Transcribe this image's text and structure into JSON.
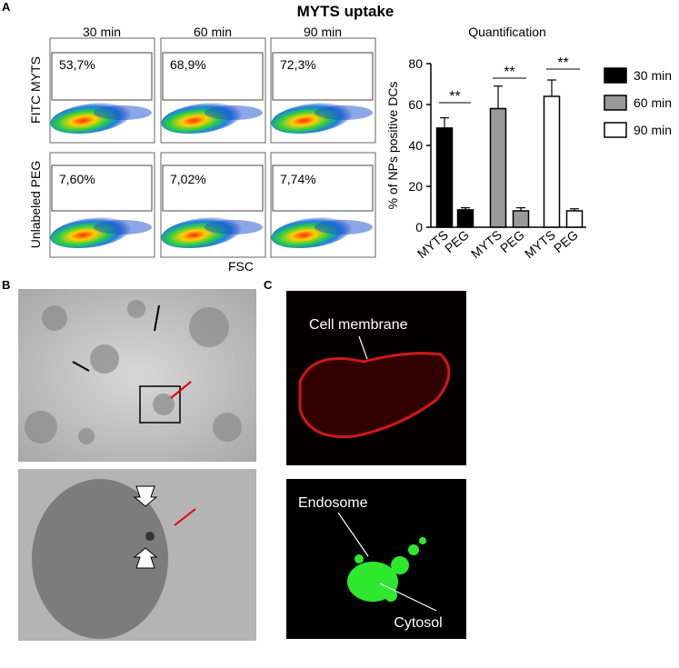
{
  "panels": [
    "A",
    "B",
    "C"
  ],
  "flow": {
    "title": "MYTS uptake",
    "columns": [
      "30 min",
      "60 min",
      "90 min"
    ],
    "rows": [
      "FITC MYTS",
      "Unlabeled PEG"
    ],
    "percentages": [
      [
        "53,7%",
        "68,9%",
        "72,3%"
      ],
      [
        "7,60%",
        "7,02%",
        "7,74%"
      ]
    ],
    "x_label": "FSC"
  },
  "microscopy": {
    "membrane": "Cell membrane",
    "endosome": "Endosome",
    "cytosol": "Cytosol"
  },
  "chart_data": {
    "type": "bar",
    "title": "Quantification",
    "y_label": "% of NPs positive DCs",
    "categories": [
      "MYTS",
      "PEG",
      "MYTS",
      "PEG",
      "MYTS",
      "PEG"
    ],
    "series": [
      {
        "name": "30 min",
        "color": "#000000",
        "values": [
          48.5,
          8.5,
          null,
          null,
          null,
          null
        ],
        "errors": [
          5,
          1,
          null,
          null,
          null,
          null
        ]
      },
      {
        "name": "60 min",
        "color": "#999999",
        "values": [
          null,
          null,
          58,
          8,
          null,
          null
        ],
        "errors": [
          null,
          null,
          11,
          1.5,
          null,
          null
        ]
      },
      {
        "name": "90 min",
        "color": "#ffffff",
        "values": [
          null,
          null,
          null,
          null,
          64,
          8
        ],
        "errors": [
          null,
          null,
          null,
          null,
          8,
          1
        ]
      }
    ],
    "annotations": [
      "**",
      "**",
      "**"
    ],
    "ylim": [
      0,
      80
    ],
    "yticks": [
      0,
      20,
      40,
      60,
      80
    ]
  }
}
